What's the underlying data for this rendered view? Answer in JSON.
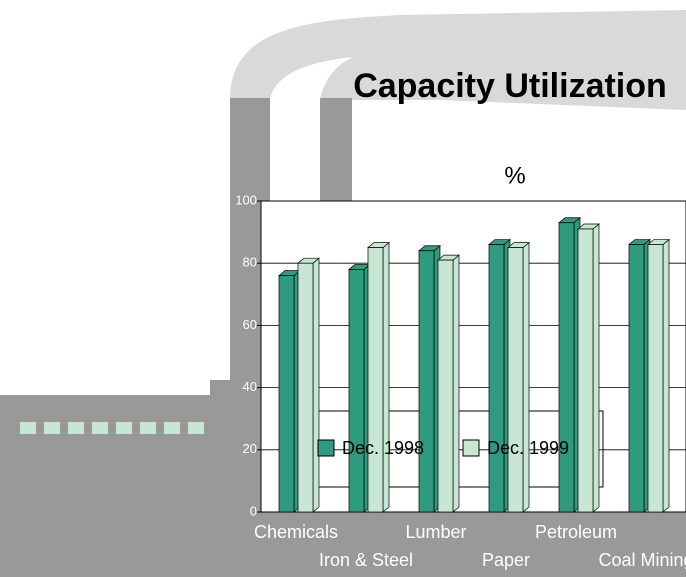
{
  "chart_data": {
    "type": "bar",
    "title": "Capacity Utilization",
    "subtitle": "%",
    "categories": [
      "Chemicals",
      "Iron & Steel",
      "Lumber",
      "Paper",
      "Petroleum",
      "Coal Mining"
    ],
    "series": [
      {
        "name": "Dec. 1998",
        "color": "#2e9a7e",
        "values": [
          76,
          78,
          84,
          86,
          93,
          86
        ]
      },
      {
        "name": "Dec. 1999",
        "color": "#c8e6d4",
        "values": [
          80,
          85,
          81,
          85,
          91,
          86
        ]
      }
    ],
    "ylim": [
      0,
      100
    ],
    "yticks": [
      0,
      20,
      40,
      60,
      80,
      100
    ],
    "grid": true
  }
}
